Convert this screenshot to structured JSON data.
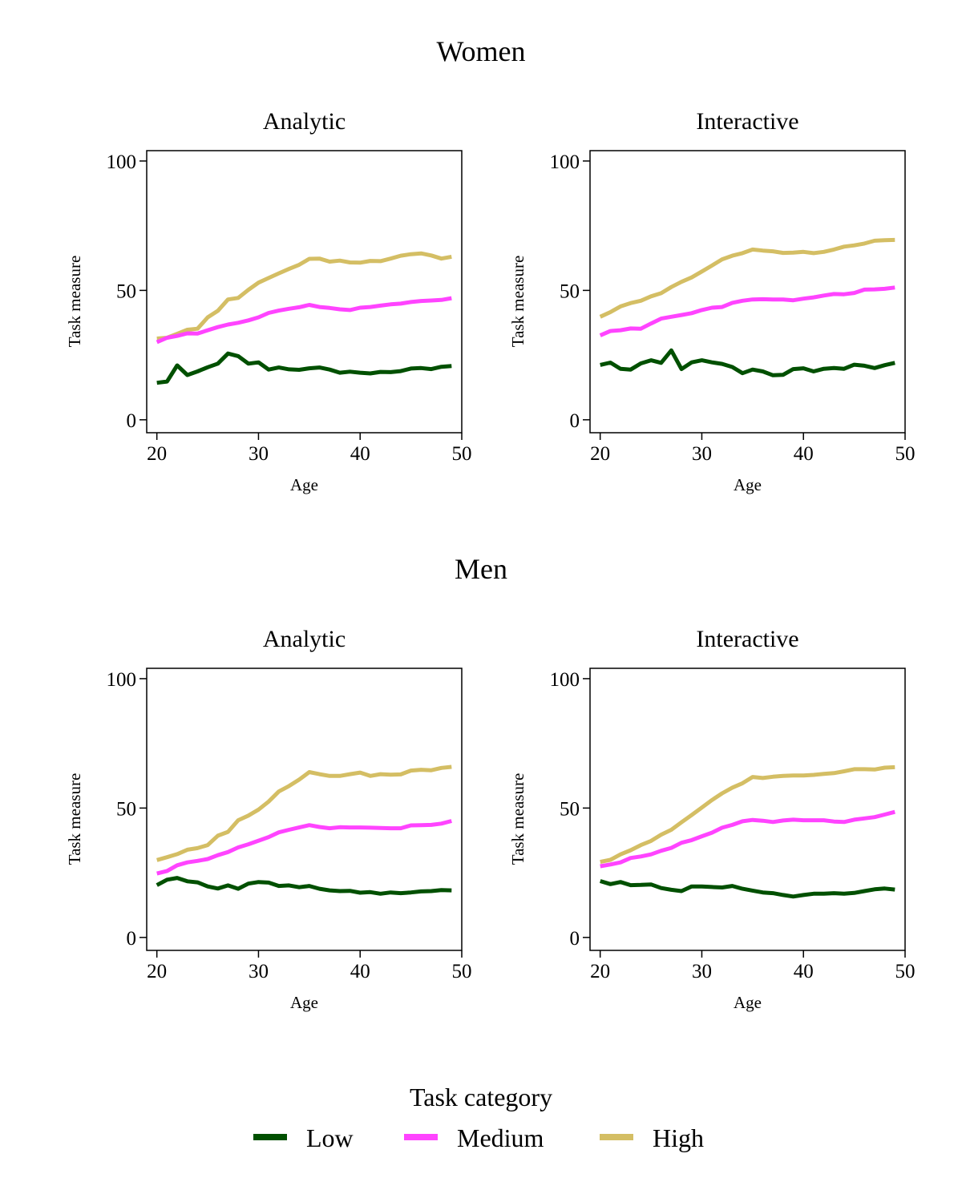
{
  "figure": {
    "legend_title": "Task category",
    "legend_placement": "bottom-center"
  },
  "groups": [
    {
      "title": "Women"
    },
    {
      "title": "Men"
    }
  ],
  "colors": {
    "Low": "#005000",
    "Medium": "#ff44ff",
    "High": "#d4be64"
  },
  "chart_data": [
    {
      "type": "line",
      "group": "Women",
      "title": "Analytic",
      "xlabel": "Age",
      "ylabel": "Task measure",
      "xlim": [
        19,
        50
      ],
      "ylim": [
        -5,
        104
      ],
      "xticks": [
        20,
        30,
        40,
        50
      ],
      "yticks": [
        0,
        50,
        100
      ],
      "grid": false,
      "x": [
        20,
        21,
        22,
        23,
        24,
        25,
        26,
        27,
        28,
        29,
        30,
        31,
        32,
        33,
        34,
        35,
        36,
        37,
        38,
        39,
        40,
        41,
        42,
        43,
        44,
        45,
        46,
        47,
        48,
        49
      ],
      "series": [
        {
          "name": "Low",
          "values": [
            14.3,
            14.8,
            21.0,
            17.3,
            18.7,
            20.3,
            21.7,
            25.6,
            24.6,
            21.7,
            22.2,
            19.4,
            20.2,
            19.5,
            19.3,
            19.9,
            20.2,
            19.4,
            18.2,
            18.6,
            18.2,
            17.9,
            18.5,
            18.4,
            18.8,
            19.8,
            20.0,
            19.6,
            20.5,
            20.8
          ]
        },
        {
          "name": "Medium",
          "values": [
            30.0,
            31.7,
            32.4,
            33.4,
            33.3,
            34.6,
            35.8,
            36.8,
            37.5,
            38.4,
            39.6,
            41.3,
            42.2,
            42.9,
            43.5,
            44.4,
            43.6,
            43.2,
            42.7,
            42.4,
            43.3,
            43.6,
            44.1,
            44.6,
            44.9,
            45.5,
            45.9,
            46.1,
            46.3,
            47.0
          ]
        },
        {
          "name": "High",
          "values": [
            31.4,
            31.7,
            33.2,
            34.8,
            35.2,
            39.6,
            42.1,
            46.5,
            47.1,
            50.2,
            53.0,
            54.8,
            56.6,
            58.3,
            59.9,
            62.2,
            62.3,
            61.1,
            61.5,
            60.8,
            60.7,
            61.4,
            61.3,
            62.3,
            63.4,
            64.0,
            64.3,
            63.5,
            62.3,
            63.0
          ]
        }
      ]
    },
    {
      "type": "line",
      "group": "Women",
      "title": "Interactive",
      "xlabel": "Age",
      "ylabel": "Task measure",
      "xlim": [
        19,
        50
      ],
      "ylim": [
        -5,
        104
      ],
      "xticks": [
        20,
        30,
        40,
        50
      ],
      "yticks": [
        0,
        50,
        100
      ],
      "grid": false,
      "x": [
        20,
        21,
        22,
        23,
        24,
        25,
        26,
        27,
        28,
        29,
        30,
        31,
        32,
        33,
        34,
        35,
        36,
        37,
        38,
        39,
        40,
        41,
        42,
        43,
        44,
        45,
        46,
        47,
        48,
        49
      ],
      "series": [
        {
          "name": "Low",
          "values": [
            21.2,
            22.1,
            19.7,
            19.4,
            21.8,
            23.0,
            22.0,
            26.8,
            19.6,
            22.2,
            23.0,
            22.2,
            21.6,
            20.4,
            18.0,
            19.4,
            18.7,
            17.2,
            17.4,
            19.6,
            19.9,
            18.7,
            19.7,
            20.0,
            19.7,
            21.3,
            20.9,
            20.0,
            21.1,
            22.0
          ]
        },
        {
          "name": "Medium",
          "values": [
            32.6,
            34.3,
            34.6,
            35.3,
            35.2,
            37.2,
            39.1,
            39.8,
            40.5,
            41.2,
            42.4,
            43.3,
            43.6,
            45.2,
            46.0,
            46.5,
            46.6,
            46.5,
            46.5,
            46.2,
            46.8,
            47.3,
            48.0,
            48.6,
            48.5,
            49.0,
            50.3,
            50.4,
            50.6,
            51.1
          ]
        },
        {
          "name": "High",
          "values": [
            39.8,
            41.6,
            43.8,
            45.1,
            46.0,
            47.7,
            48.9,
            51.3,
            53.3,
            55.0,
            57.3,
            59.6,
            62.0,
            63.4,
            64.4,
            65.8,
            65.4,
            65.1,
            64.5,
            64.6,
            64.9,
            64.4,
            64.9,
            65.8,
            66.9,
            67.4,
            68.1,
            69.2,
            69.4,
            69.5
          ]
        }
      ]
    },
    {
      "type": "line",
      "group": "Men",
      "title": "Analytic",
      "xlabel": "Age",
      "ylabel": "Task measure",
      "xlim": [
        19,
        50
      ],
      "ylim": [
        -5,
        104
      ],
      "xticks": [
        20,
        30,
        40,
        50
      ],
      "yticks": [
        0,
        50,
        100
      ],
      "grid": false,
      "x": [
        20,
        21,
        22,
        23,
        24,
        25,
        26,
        27,
        28,
        29,
        30,
        31,
        32,
        33,
        34,
        35,
        36,
        37,
        38,
        39,
        40,
        41,
        42,
        43,
        44,
        45,
        46,
        47,
        48,
        49
      ],
      "series": [
        {
          "name": "Low",
          "values": [
            20.2,
            22.3,
            23.0,
            21.7,
            21.3,
            19.7,
            18.9,
            20.1,
            18.8,
            20.8,
            21.4,
            21.2,
            19.9,
            20.1,
            19.4,
            19.9,
            18.8,
            18.2,
            17.9,
            18.0,
            17.3,
            17.5,
            16.9,
            17.4,
            17.1,
            17.4,
            17.8,
            17.9,
            18.3,
            18.2
          ]
        },
        {
          "name": "Medium",
          "values": [
            24.7,
            25.7,
            27.9,
            29.0,
            29.6,
            30.3,
            31.8,
            33.0,
            34.8,
            36.0,
            37.4,
            38.8,
            40.6,
            41.6,
            42.5,
            43.4,
            42.7,
            42.2,
            42.6,
            42.5,
            42.5,
            42.4,
            42.3,
            42.2,
            42.2,
            43.3,
            43.4,
            43.5,
            44.0,
            45.0
          ]
        },
        {
          "name": "High",
          "values": [
            29.9,
            31.0,
            32.2,
            33.9,
            34.5,
            35.7,
            39.3,
            40.8,
            45.3,
            47.1,
            49.4,
            52.5,
            56.4,
            58.5,
            61.0,
            63.9,
            63.1,
            62.4,
            62.4,
            63.1,
            63.7,
            62.4,
            63.1,
            62.9,
            63.0,
            64.5,
            64.8,
            64.6,
            65.5,
            65.9
          ]
        }
      ]
    },
    {
      "type": "line",
      "group": "Men",
      "title": "Interactive",
      "xlabel": "Age",
      "ylabel": "Task measure",
      "xlim": [
        19,
        50
      ],
      "ylim": [
        -5,
        104
      ],
      "xticks": [
        20,
        30,
        40,
        50
      ],
      "yticks": [
        0,
        50,
        100
      ],
      "grid": false,
      "x": [
        20,
        21,
        22,
        23,
        24,
        25,
        26,
        27,
        28,
        29,
        30,
        31,
        32,
        33,
        34,
        35,
        36,
        37,
        38,
        39,
        40,
        41,
        42,
        43,
        44,
        45,
        46,
        47,
        48,
        49
      ],
      "series": [
        {
          "name": "Low",
          "values": [
            21.8,
            20.6,
            21.4,
            20.2,
            20.3,
            20.5,
            19.1,
            18.4,
            17.9,
            19.7,
            19.7,
            19.5,
            19.3,
            19.9,
            18.8,
            18.1,
            17.4,
            17.1,
            16.4,
            15.8,
            16.4,
            16.9,
            16.9,
            17.1,
            16.9,
            17.2,
            17.9,
            18.6,
            18.9,
            18.5
          ]
        },
        {
          "name": "Medium",
          "values": [
            27.5,
            28.2,
            29.0,
            30.7,
            31.3,
            32.1,
            33.5,
            34.6,
            36.6,
            37.6,
            39.1,
            40.5,
            42.4,
            43.5,
            44.9,
            45.4,
            45.1,
            44.6,
            45.2,
            45.5,
            45.3,
            45.3,
            45.3,
            44.8,
            44.6,
            45.5,
            46.0,
            46.5,
            47.5,
            48.5
          ]
        },
        {
          "name": "High",
          "values": [
            29.2,
            30.0,
            32.1,
            33.7,
            35.7,
            37.3,
            39.7,
            41.6,
            44.5,
            47.3,
            50.2,
            53.1,
            55.7,
            57.9,
            59.6,
            62.0,
            61.6,
            62.1,
            62.4,
            62.6,
            62.6,
            62.8,
            63.2,
            63.5,
            64.2,
            65.0,
            65.0,
            64.9,
            65.6,
            65.8
          ]
        }
      ]
    }
  ],
  "legend": {
    "entries": [
      "Low",
      "Medium",
      "High"
    ]
  }
}
